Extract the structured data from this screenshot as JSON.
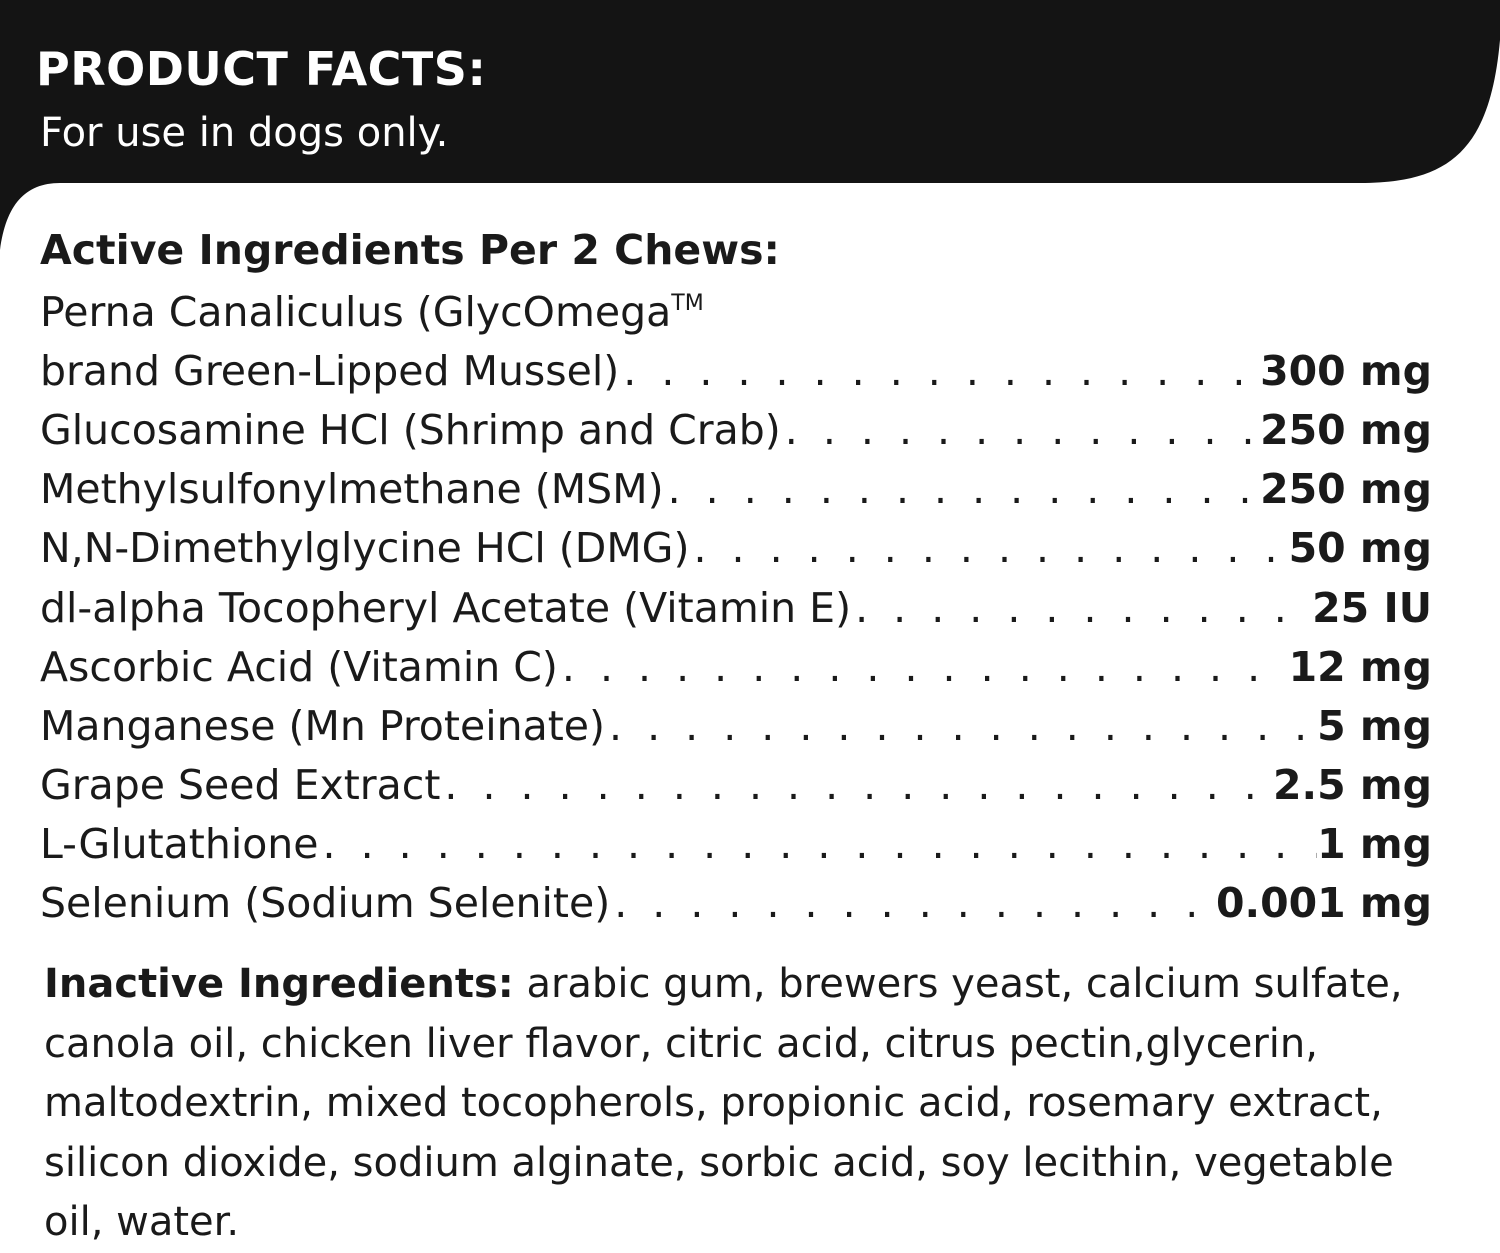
{
  "header": {
    "title": "PRODUCT FACTS:",
    "subtitle": "For use in dogs only.",
    "background_color": "#141414"
  },
  "active": {
    "heading": "Active Ingredients Per 2 Chews:",
    "first_line": "Perna Canaliculus (GlycOmega",
    "first_line_mark": "TM",
    "items": [
      {
        "name": "brand Green-Lipped Mussel)",
        "amount": "300 mg"
      },
      {
        "name": "Glucosamine HCl (Shrimp and Crab)",
        "amount": "250 mg"
      },
      {
        "name": "Methylsulfonylmethane (MSM)",
        "amount": "250 mg"
      },
      {
        "name": "N,N-Dimethylglycine HCl (DMG)",
        "amount": "50 mg"
      },
      {
        "name": "dl-alpha Tocopheryl Acetate (Vitamin E)",
        "amount": "25 IU"
      },
      {
        "name": "Ascorbic Acid (Vitamin C)",
        "amount": "12 mg"
      },
      {
        "name": "Manganese (Mn Proteinate)",
        "amount": "5 mg"
      },
      {
        "name": "Grape Seed Extract",
        "amount": "2.5 mg"
      },
      {
        "name": "L-Glutathione",
        "amount": "1 mg"
      },
      {
        "name": "Selenium (Sodium Selenite)",
        "amount": "0.001 mg"
      }
    ]
  },
  "inactive": {
    "label": "Inactive Ingredients:",
    "text": " arabic gum, brewers yeast, calcium sulfate, canola oil, chicken liver flavor, citric acid, citrus pectin,glycerin, maltodextrin, mixed tocopherols, propionic acid, rosemary extract, silicon dioxide, sodium alginate, sorbic acid, soy lecithin, vegetable oil, water."
  }
}
